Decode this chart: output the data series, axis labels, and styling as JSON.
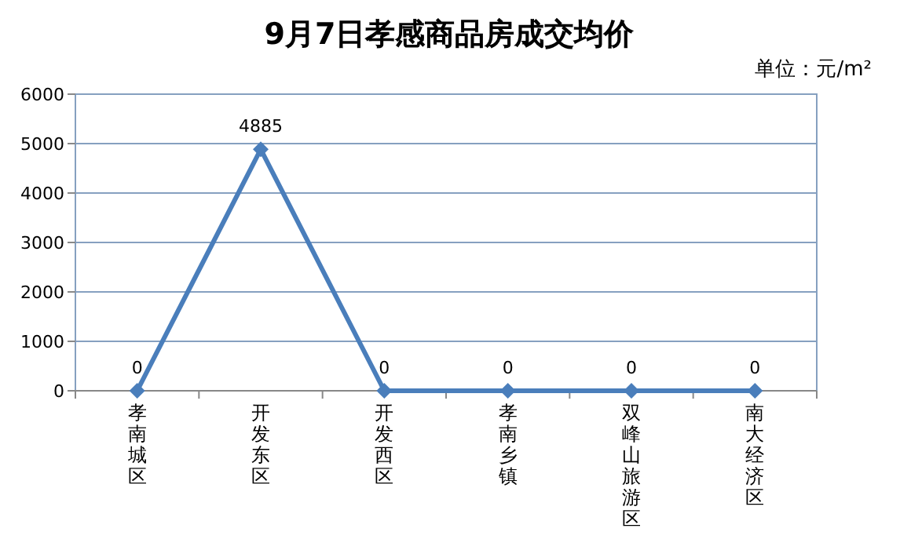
{
  "chart_data": {
    "type": "line",
    "title": "9月7日孝感商品房成交均价",
    "annotations": [
      "单位：元/m²"
    ],
    "categories": [
      "孝南城区",
      "开发东区",
      "开发西区",
      "孝南乡镇",
      "双峰山旅游区",
      "南大经济区"
    ],
    "series": [
      {
        "color": "#4a7ebb",
        "values": [
          0,
          4885,
          0,
          0,
          0,
          0
        ]
      }
    ],
    "ylim": [
      0,
      6000
    ],
    "yticks": [
      0,
      1000,
      2000,
      3000,
      4000,
      5000,
      6000
    ],
    "grid": "y",
    "marker": "diamond",
    "line_style": "solid",
    "data_labels": true
  }
}
